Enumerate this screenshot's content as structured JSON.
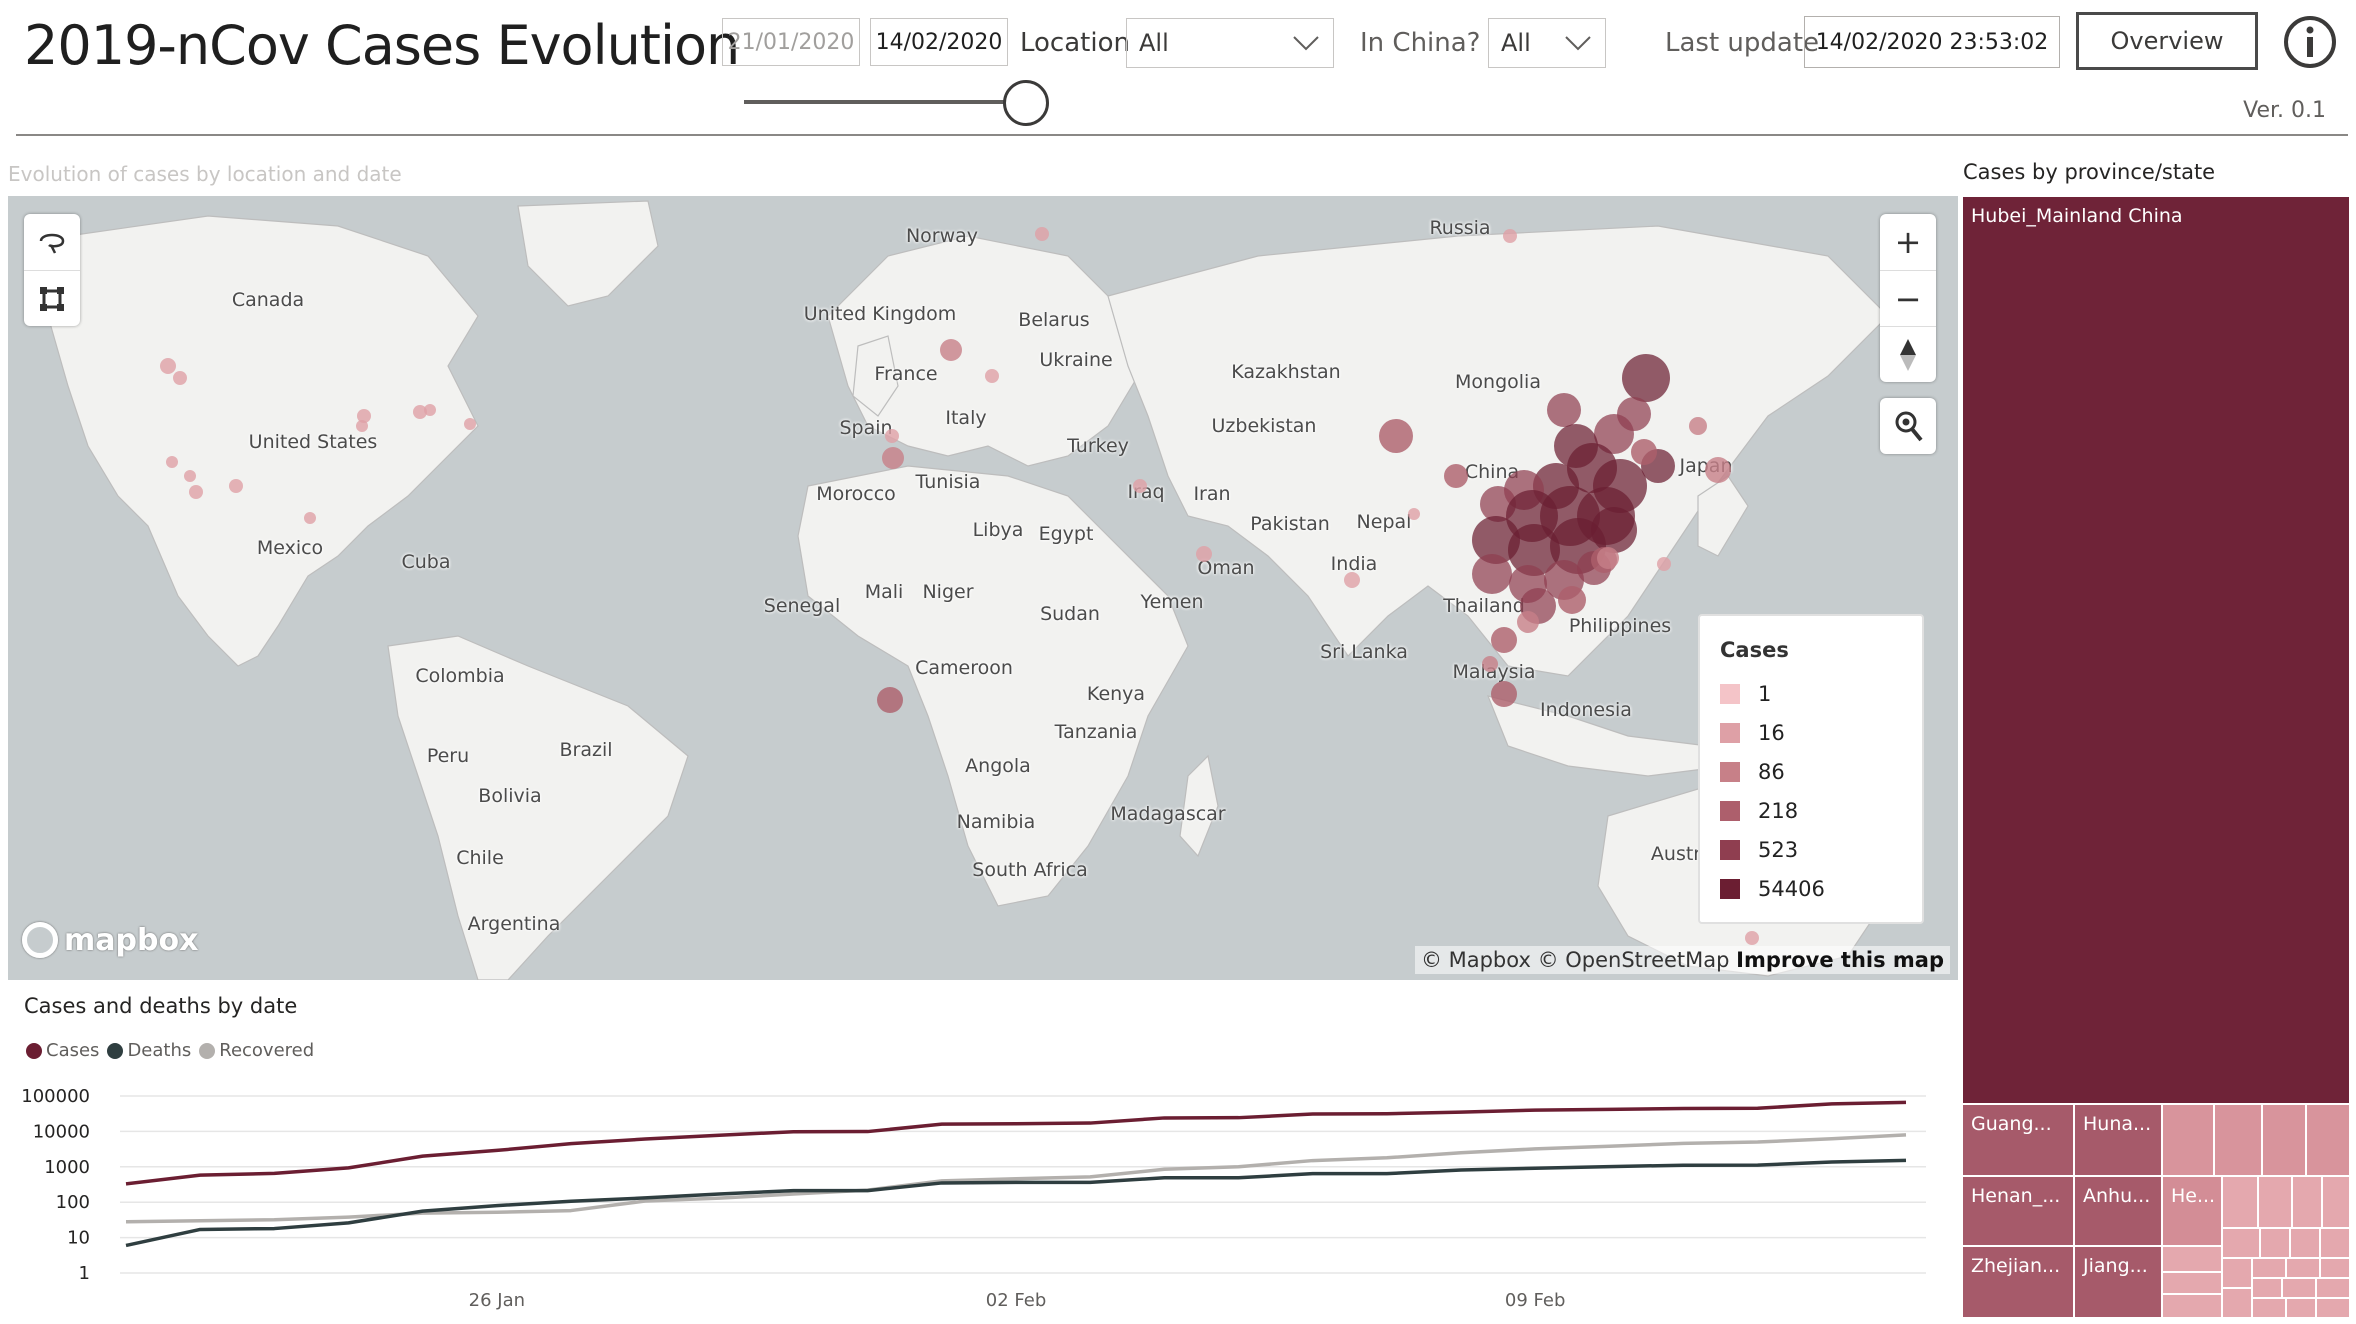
{
  "header": {
    "title": "2019-nCov Cases Evolution",
    "date_start": "21/01/2020",
    "date_end": "14/02/2020",
    "slider_position": 1.0,
    "location_label": "Location",
    "location_value": "All",
    "in_china_label": "In China?",
    "in_china_value": "All",
    "last_update_label": "Last update",
    "last_update_value": "14/02/2020 23:53:02",
    "overview_button": "Overview",
    "info_icon": "info-icon",
    "version": "Ver. 0.1"
  },
  "map": {
    "title": "Evolution of cases by location and date",
    "controls": {
      "lasso_icon": "lasso-select-icon",
      "rect_icon": "rect-select-icon",
      "zoom_in": "+",
      "zoom_out": "−",
      "compass_icon": "compass-icon",
      "search_icon": "map-search-icon"
    },
    "labels": [
      "Canada",
      "United States",
      "Mexico",
      "Cuba",
      "Colombia",
      "Peru",
      "Brazil",
      "Bolivia",
      "Chile",
      "Argentina",
      "Norway",
      "United Kingdom",
      "Belarus",
      "Ukraine",
      "France",
      "Italy",
      "Spain",
      "Turkey",
      "Morocco",
      "Tunisia",
      "Libya",
      "Egypt",
      "Mali",
      "Niger",
      "Senegal",
      "Sudan",
      "Cameroon",
      "Kenya",
      "Tanzania",
      "Angola",
      "Namibia",
      "Madagascar",
      "South Africa",
      "Yemen",
      "Oman",
      "Iraq",
      "Iran",
      "Kazakhstan",
      "Uzbekistan",
      "Pakistan",
      "Nepal",
      "India",
      "Sri Lanka",
      "Russia",
      "Mongolia",
      "China",
      "Japan",
      "Thailand",
      "Philippines",
      "Malaysia",
      "Indonesia",
      "Austr"
    ],
    "legend": {
      "title": "Cases",
      "items": [
        {
          "label": "1",
          "color": "#f4c4c8"
        },
        {
          "label": "16",
          "color": "#dea0a6"
        },
        {
          "label": "86",
          "color": "#c78088"
        },
        {
          "label": "218",
          "color": "#ad5f6c"
        },
        {
          "label": "523",
          "color": "#8f3e50"
        },
        {
          "label": "54406",
          "color": "#6b1e32"
        }
      ]
    },
    "mapbox_logo": "mapbox",
    "attribution_1": "© Mapbox © OpenStreetMap",
    "attribution_2": "Improve this map"
  },
  "line_chart": {
    "title": "Cases and deaths by date"
  },
  "chart_data": {
    "type": "line",
    "title": "Cases and deaths by date",
    "log_scale": true,
    "y_ticks": [
      "100000",
      "10000",
      "1000",
      "100",
      "10",
      "1"
    ],
    "x_ticks": [
      "26 Jan",
      "02 Feb",
      "09 Feb"
    ],
    "ylim": [
      1,
      100000
    ],
    "x": [
      "2020-01-21",
      "2020-01-22",
      "2020-01-23",
      "2020-01-24",
      "2020-01-25",
      "2020-01-26",
      "2020-01-27",
      "2020-01-28",
      "2020-01-29",
      "2020-01-30",
      "2020-01-31",
      "2020-02-01",
      "2020-02-02",
      "2020-02-03",
      "2020-02-04",
      "2020-02-05",
      "2020-02-06",
      "2020-02-07",
      "2020-02-08",
      "2020-02-09",
      "2020-02-10",
      "2020-02-11",
      "2020-02-12",
      "2020-02-13",
      "2020-02-14"
    ],
    "series": [
      {
        "name": "Cases",
        "color": "#6b1e32",
        "values": [
          330,
          580,
          650,
          930,
          2000,
          2900,
          4500,
          6100,
          7800,
          9800,
          9900,
          16000,
          16500,
          17200,
          24000,
          24400,
          31000,
          31500,
          35000,
          40000,
          42000,
          44500,
          45000,
          60000,
          66000
        ]
      },
      {
        "name": "Deaths",
        "color": "#2f3e40",
        "values": [
          6,
          17,
          18,
          26,
          56,
          80,
          106,
          132,
          170,
          213,
          213,
          350,
          362,
          362,
          490,
          490,
          640,
          640,
          810,
          910,
          1010,
          1110,
          1115,
          1370,
          1520
        ]
      },
      {
        "name": "Recovered",
        "color": "#b3b0ad",
        "values": [
          28,
          30,
          32,
          38,
          49,
          52,
          58,
          108,
          130,
          170,
          220,
          400,
          460,
          520,
          850,
          1000,
          1500,
          1800,
          2500,
          3200,
          3800,
          4600,
          5000,
          6200,
          8000
        ]
      }
    ]
  },
  "treemap": {
    "title": "Cases by province/state",
    "cells": [
      {
        "label": "Hubei_Mainland China",
        "color": "#6f2338"
      },
      {
        "label": "Guang...",
        "color": "#a65a6a"
      },
      {
        "label": "Huna...",
        "color": "#a65a6a"
      },
      {
        "label": "Henan_...",
        "color": "#a65a6a"
      },
      {
        "label": "Anhu...",
        "color": "#a65a6a"
      },
      {
        "label": "Zhejian...",
        "color": "#a65a6a"
      },
      {
        "label": "Jiang...",
        "color": "#a65a6a"
      },
      {
        "label": "He...",
        "color": "#d38d96"
      },
      {
        "label": "",
        "color": "#d8949c"
      },
      {
        "label": "",
        "color": "#e4a8ae"
      }
    ]
  }
}
